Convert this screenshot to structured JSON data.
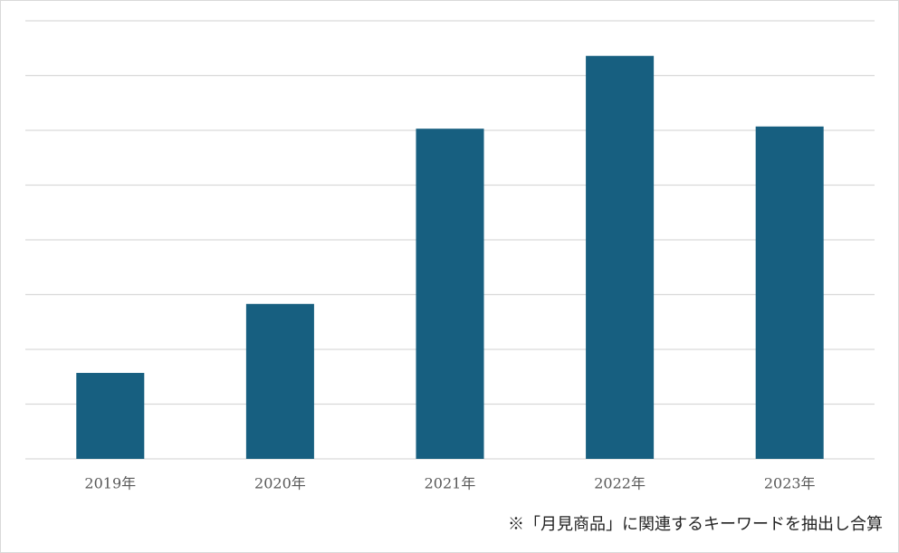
{
  "chart_data": {
    "type": "bar",
    "categories": [
      "2019年",
      "2020年",
      "2021年",
      "2022年",
      "2023年"
    ],
    "values": [
      1.57,
      2.83,
      6.03,
      7.36,
      6.07
    ],
    "color": "#175f80",
    "ylim": [
      0,
      8
    ],
    "yticks": [
      0,
      1,
      2,
      3,
      4,
      5,
      6,
      7,
      8
    ],
    "grid": true,
    "ytick_labels": false,
    "note": "※「月見商品」に関連するキーワードを抽出し合算"
  }
}
